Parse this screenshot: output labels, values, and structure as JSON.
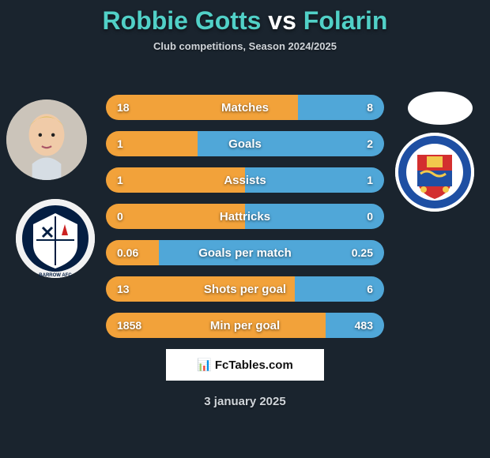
{
  "title_player1": "Robbie Gotts",
  "title_vs": "vs",
  "title_player2": "Folarin",
  "title_color_p1": "#51d0c7",
  "title_color_vs": "#ffffff",
  "title_color_p2": "#51d0c7",
  "subtitle": "Club competitions, Season 2024/2025",
  "background_color": "#1a242e",
  "bars": {
    "left_color": "#f2a23a",
    "right_color": "#50a7d8",
    "rows": [
      {
        "label": "Matches",
        "left": "18",
        "right": "8",
        "left_pct": 69,
        "right_pct": 31
      },
      {
        "label": "Goals",
        "left": "1",
        "right": "2",
        "left_pct": 33,
        "right_pct": 67
      },
      {
        "label": "Assists",
        "left": "1",
        "right": "1",
        "left_pct": 50,
        "right_pct": 50
      },
      {
        "label": "Hattricks",
        "left": "0",
        "right": "0",
        "left_pct": 50,
        "right_pct": 50
      },
      {
        "label": "Goals per match",
        "left": "0.06",
        "right": "0.25",
        "left_pct": 19,
        "right_pct": 81
      },
      {
        "label": "Shots per goal",
        "left": "13",
        "right": "6",
        "left_pct": 68,
        "right_pct": 32
      },
      {
        "label": "Min per goal",
        "left": "1858",
        "right": "483",
        "left_pct": 79,
        "right_pct": 21
      }
    ]
  },
  "footer_brand_icon": "📊",
  "footer_brand_text": "FcTables.com",
  "footer_date": "3 january 2025",
  "crest_right_colors": {
    "shield_top": "#d32f2f",
    "shield_bottom": "#1e4fa3",
    "ring": "#1e4fa3"
  },
  "crest_left_colors": {
    "bg": "#041e42",
    "accent": "#ffffff"
  }
}
